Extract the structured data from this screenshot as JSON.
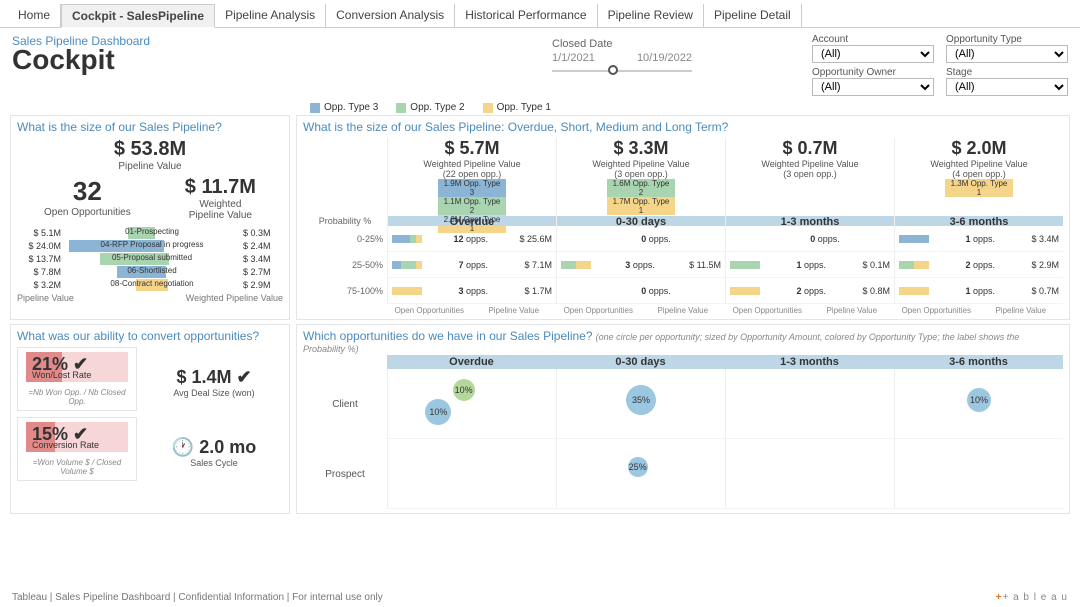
{
  "tabs": [
    "Home",
    "Cockpit - SalesPipeline",
    "Pipeline Analysis",
    "Conversion Analysis",
    "Historical Performance",
    "Pipeline Review",
    "Pipeline Detail"
  ],
  "active_tab": 1,
  "dashboard": {
    "subtitle": "Sales Pipeline Dashboard",
    "title": "Cockpit"
  },
  "closed_date": {
    "label": "Closed Date",
    "from": "1/1/2021",
    "to": "10/19/2022",
    "handle_pct": 40
  },
  "filters": {
    "account": {
      "label": "Account",
      "value": "(All)"
    },
    "opp_type": {
      "label": "Opportunity Type",
      "value": "(All)"
    },
    "opp_owner": {
      "label": "Opportunity Owner",
      "value": "(All)"
    },
    "stage": {
      "label": "Stage",
      "value": "(All)"
    }
  },
  "legend": [
    {
      "label": "Opp. Type 3",
      "color": "#8cb4d4"
    },
    {
      "label": "Opp. Type 2",
      "color": "#a8d4b0"
    },
    {
      "label": "Opp. Type 1",
      "color": "#f4d58a"
    }
  ],
  "q1": {
    "title": "What is the size of our Sales Pipeline?",
    "total_value": "$ 53.8M",
    "total_label": "Pipeline Value",
    "open_count": "32",
    "open_label": "Open Opportunities",
    "weighted_value": "$ 11.7M",
    "weighted_label": "Weighted\nPipeline Value",
    "stages": [
      {
        "name": "01-Prospecting",
        "left_val": "$ 5.1M",
        "right_val": "$ 0.3M",
        "left_w": 28,
        "right_w": 4,
        "color": "#a8d4b0"
      },
      {
        "name": "04-RFP Proposal in progress",
        "left_val": "$ 24.0M",
        "right_val": "$ 2.4M",
        "left_w": 95,
        "right_w": 14,
        "color": "#8cb4d4"
      },
      {
        "name": "05-Proposal submitted",
        "left_val": "$ 13.7M",
        "right_val": "$ 3.4M",
        "left_w": 60,
        "right_w": 20,
        "color": "#a8d4b0"
      },
      {
        "name": "06-Shortlisted",
        "left_val": "$ 7.8M",
        "right_val": "$ 2.7M",
        "left_w": 40,
        "right_w": 16,
        "color": "#8cb4d4"
      },
      {
        "name": "08-Contract negotiation",
        "left_val": "$ 3.2M",
        "right_val": "$ 2.9M",
        "left_w": 18,
        "right_w": 18,
        "color": "#f4d58a"
      }
    ],
    "axis_left": "Pipeline Value",
    "axis_right": "Weighted Pipeline Value"
  },
  "q2": {
    "title": "What is the size of our Sales Pipeline: Overdue, Short, Medium and Long Term?",
    "prob_label": "Probability %",
    "prob_rows": [
      "0-25%",
      "25-50%",
      "75-100%"
    ],
    "groups": [
      {
        "name": "Overdue",
        "big": "$ 5.7M",
        "sub": "Weighted Pipeline Value",
        "extra": "(22 open opp.)",
        "stack": [
          {
            "label": "1.9M  Opp. Type 3",
            "color": "#8cb4d4"
          },
          {
            "label": "1.1M  Opp. Type 2",
            "color": "#a8d4b0"
          },
          {
            "label": "2.6M  Opp. Type 1",
            "color": "#f4d58a"
          }
        ],
        "rows": [
          {
            "l": "12",
            "u": "opps.",
            "r": "$ 25.6M",
            "stack": [
              [
                "#8cb4d4",
                60
              ],
              [
                "#a8d4b0",
                20
              ],
              [
                "#f4d58a",
                20
              ]
            ]
          },
          {
            "l": "7",
            "u": "opps.",
            "r": "$ 7.1M",
            "stack": [
              [
                "#8cb4d4",
                30
              ],
              [
                "#a8d4b0",
                50
              ],
              [
                "#f4d58a",
                20
              ]
            ]
          },
          {
            "l": "3",
            "u": "opps.",
            "r": "$ 1.7M",
            "stack": [
              [
                "#f4d58a",
                100
              ]
            ]
          }
        ]
      },
      {
        "name": "0-30 days",
        "big": "$ 3.3M",
        "sub": "Weighted Pipeline Value",
        "extra": "(3 open opp.)",
        "stack": [
          {
            "label": "1.6M  Opp. Type 2",
            "color": "#a8d4b0"
          },
          {
            "label": "1.7M  Opp. Type 1",
            "color": "#f4d58a"
          }
        ],
        "rows": [
          {
            "l": "0",
            "u": "opps.",
            "r": "",
            "stack": []
          },
          {
            "l": "3",
            "u": "opps.",
            "r": "$ 11.5M",
            "stack": [
              [
                "#a8d4b0",
                50
              ],
              [
                "#f4d58a",
                50
              ]
            ]
          },
          {
            "l": "0",
            "u": "opps.",
            "r": "",
            "stack": []
          }
        ]
      },
      {
        "name": "1-3 months",
        "big": "$ 0.7M",
        "sub": "Weighted Pipeline Value",
        "extra": "(3 open opp.)",
        "stack": [],
        "rows": [
          {
            "l": "0",
            "u": "opps.",
            "r": "",
            "stack": []
          },
          {
            "l": "1",
            "u": "opps.",
            "r": "$ 0.1M",
            "stack": [
              [
                "#a8d4b0",
                100
              ]
            ]
          },
          {
            "l": "2",
            "u": "opps.",
            "r": "$ 0.8M",
            "stack": [
              [
                "#f4d58a",
                100
              ]
            ]
          }
        ]
      },
      {
        "name": "3-6 months",
        "big": "$ 2.0M",
        "sub": "Weighted Pipeline Value",
        "extra": "(4 open opp.)",
        "stack": [
          {
            "label": "1.3M  Opp. Type 1",
            "color": "#f4d58a"
          }
        ],
        "rows": [
          {
            "l": "1",
            "u": "opps.",
            "r": "$ 3.4M",
            "stack": [
              [
                "#8cb4d4",
                100
              ]
            ]
          },
          {
            "l": "2",
            "u": "opps.",
            "r": "$ 2.9M",
            "stack": [
              [
                "#a8d4b0",
                50
              ],
              [
                "#f4d58a",
                50
              ]
            ]
          },
          {
            "l": "1",
            "u": "opps.",
            "r": "$ 0.7M",
            "stack": [
              [
                "#f4d58a",
                100
              ]
            ]
          }
        ]
      }
    ],
    "foot": [
      "Open Opportunities",
      "Pipeline Value",
      "Open Opportunities",
      "Pipeline Value",
      "Open Opportunities",
      "Pipeline Value",
      "Open Opportunities",
      "Pipeline Value"
    ]
  },
  "q3": {
    "title": "What was our ability to convert opportunities?",
    "kpi1": {
      "val": "21% ✔",
      "label": "Won/Lost Rate",
      "fill_pct": 35,
      "note": "=Nb Won Opp. / Nb Closed Opp."
    },
    "kpi2": {
      "val": "15% ✔",
      "label": "Conversion Rate",
      "fill_pct": 28,
      "note": "=Won Volume $ / Closed Volume $"
    },
    "deal": {
      "val": "$ 1.4M ✔",
      "label": "Avg Deal Size (won)"
    },
    "cycle": {
      "icon": "🕐",
      "val": "2.0 mo",
      "label": "Sales Cycle"
    }
  },
  "q4": {
    "title": "Which opportunities do we have in our Sales Pipeline?",
    "hint": "(one circle per opportunity; sized by Opportunity Amount, colored by Opportunity Type; the label shows the Probability %)",
    "cols": [
      "Overdue",
      "0-30 days",
      "1-3 months",
      "3-6 months"
    ],
    "rows": [
      "Client",
      "Prospect"
    ],
    "bubbles": [
      {
        "r": 0,
        "c": 0,
        "x": 45,
        "y": 30,
        "size": 22,
        "color": "#b4d89a",
        "label": "10%"
      },
      {
        "r": 0,
        "c": 0,
        "x": 30,
        "y": 62,
        "size": 26,
        "color": "#9cc7e0",
        "label": "10%"
      },
      {
        "r": 0,
        "c": 1,
        "x": 50,
        "y": 45,
        "size": 30,
        "color": "#9cc7e0",
        "label": "35%"
      },
      {
        "r": 0,
        "c": 3,
        "x": 50,
        "y": 45,
        "size": 24,
        "color": "#9cc7e0",
        "label": "10%"
      },
      {
        "r": 1,
        "c": 1,
        "x": 48,
        "y": 40,
        "size": 20,
        "color": "#9cc7e0",
        "label": "25%"
      }
    ]
  },
  "footer": {
    "left": "Tableau | Sales Pipeline Dashboard | Confidential Information | For internal use only",
    "logo_pre": "+",
    "logo_text": "+ a b l e a u"
  }
}
